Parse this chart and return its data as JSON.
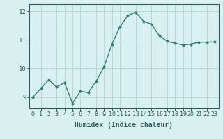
{
  "x": [
    0,
    1,
    2,
    3,
    4,
    5,
    6,
    7,
    8,
    9,
    10,
    11,
    12,
    13,
    14,
    15,
    16,
    17,
    18,
    19,
    20,
    21,
    22,
    23
  ],
  "y": [
    9.0,
    9.3,
    9.6,
    9.35,
    9.5,
    8.78,
    9.2,
    9.15,
    9.55,
    10.05,
    10.85,
    11.45,
    11.85,
    11.97,
    11.65,
    11.55,
    11.15,
    10.95,
    10.88,
    10.82,
    10.85,
    10.92,
    10.92,
    10.93
  ],
  "line_color": "#2e7d6e",
  "marker_color": "#2e7d6e",
  "bg_color": "#d8f0f0",
  "grid_color": "#b8d8d8",
  "xlabel": "Humidex (Indice chaleur)",
  "ylim": [
    8.6,
    12.25
  ],
  "xlim": [
    -0.5,
    23.5
  ],
  "yticks": [
    9,
    10,
    11,
    12
  ],
  "xticks": [
    0,
    1,
    2,
    3,
    4,
    5,
    6,
    7,
    8,
    9,
    10,
    11,
    12,
    13,
    14,
    15,
    16,
    17,
    18,
    19,
    20,
    21,
    22,
    23
  ],
  "line_width": 1.0,
  "marker_size": 2.5,
  "tick_color": "#2e6060",
  "label_color": "#2e6060",
  "tick_fontsize": 6.0,
  "ytick_fontsize": 6.5,
  "xlabel_fontsize": 7.0
}
